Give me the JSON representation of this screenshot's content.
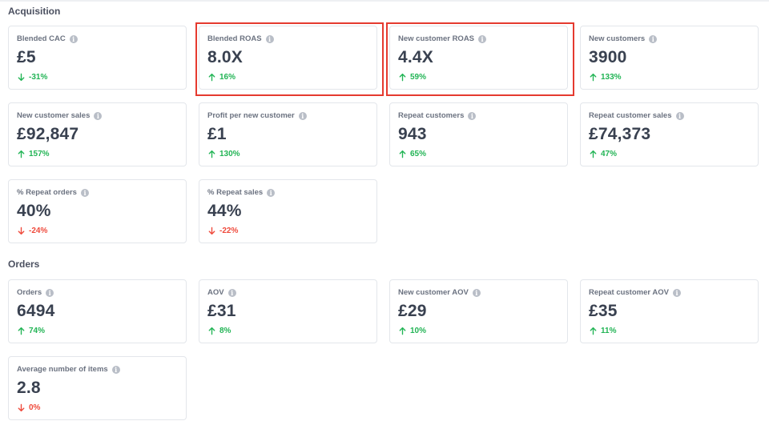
{
  "colors": {
    "up": "#22b455",
    "down": "#ef4a3c",
    "highlight": "#e53a2f"
  },
  "acquisition": {
    "title": "Acquisition",
    "cards": [
      {
        "label": "Blended CAC",
        "value": "£5",
        "change": "-31%",
        "direction": "down",
        "change_color": "up"
      },
      {
        "label": "Blended ROAS",
        "value": "8.0X",
        "change": "16%",
        "direction": "up",
        "change_color": "up",
        "highlighted": true
      },
      {
        "label": "New customer ROAS",
        "value": "4.4X",
        "change": "59%",
        "direction": "up",
        "change_color": "up",
        "highlighted": true
      },
      {
        "label": "New customers",
        "value": "3900",
        "change": "133%",
        "direction": "up",
        "change_color": "up"
      },
      {
        "label": "New customer sales",
        "value": "£92,847",
        "change": "157%",
        "direction": "up",
        "change_color": "up"
      },
      {
        "label": "Profit per new customer",
        "value": "£1",
        "change": "130%",
        "direction": "up",
        "change_color": "up"
      },
      {
        "label": "Repeat customers",
        "value": "943",
        "change": "65%",
        "direction": "up",
        "change_color": "up"
      },
      {
        "label": "Repeat customer sales",
        "value": "£74,373",
        "change": "47%",
        "direction": "up",
        "change_color": "up"
      },
      {
        "label": "% Repeat orders",
        "value": "40%",
        "change": "-24%",
        "direction": "down",
        "change_color": "down"
      },
      {
        "label": "% Repeat sales",
        "value": "44%",
        "change": "-22%",
        "direction": "down",
        "change_color": "down"
      }
    ]
  },
  "orders": {
    "title": "Orders",
    "cards": [
      {
        "label": "Orders",
        "value": "6494",
        "change": "74%",
        "direction": "up",
        "change_color": "up"
      },
      {
        "label": "AOV",
        "value": "£31",
        "change": "8%",
        "direction": "up",
        "change_color": "up"
      },
      {
        "label": "New customer AOV",
        "value": "£29",
        "change": "10%",
        "direction": "up",
        "change_color": "up"
      },
      {
        "label": "Repeat customer AOV",
        "value": "£35",
        "change": "11%",
        "direction": "up",
        "change_color": "up"
      },
      {
        "label": "Average number of items",
        "value": "2.8",
        "change": "0%",
        "direction": "down",
        "change_color": "down"
      }
    ]
  }
}
